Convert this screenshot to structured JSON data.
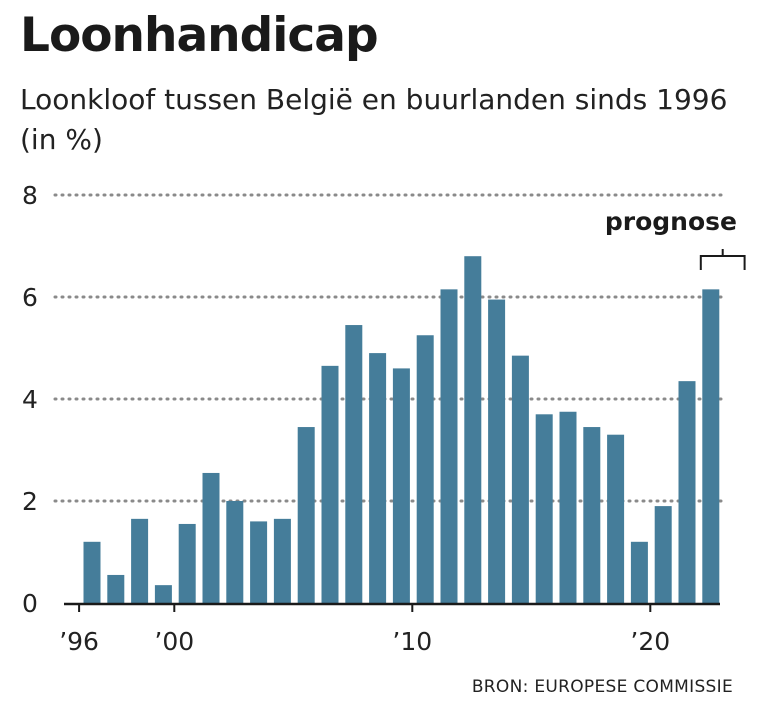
{
  "chart_data": {
    "type": "bar",
    "title": "Loonhandicap",
    "subtitle": "Loonkloof tussen België en buurlanden sinds 1996 (in %)",
    "x": [
      1996,
      1997,
      1998,
      1999,
      2000,
      2001,
      2002,
      2003,
      2004,
      2005,
      2006,
      2007,
      2008,
      2009,
      2010,
      2011,
      2012,
      2013,
      2014,
      2015,
      2016,
      2017,
      2018,
      2019,
      2020,
      2021,
      2022,
      2023
    ],
    "values": [
      1.2,
      0.55,
      1.65,
      0.35,
      1.55,
      2.55,
      2.0,
      1.6,
      1.65,
      3.45,
      4.65,
      5.45,
      4.9,
      4.6,
      5.25,
      6.15,
      6.8,
      5.95,
      4.85,
      3.7,
      3.75,
      3.45,
      3.3,
      1.2,
      1.9,
      4.35,
      6.15,
      0
    ],
    "forecast_from": 2022,
    "xtick_values": [
      1996,
      2000,
      2010,
      2020
    ],
    "xtick_labels": [
      "’96",
      "’00",
      "’10",
      "’20"
    ],
    "yticks": [
      0,
      2,
      4,
      6,
      8
    ],
    "ylim": [
      0,
      8
    ],
    "grid": true,
    "annotations": [
      {
        "text": "prognose",
        "x_from": 2022,
        "x_to": 2023
      }
    ],
    "source": "BRON: EUROPESE COMMISSIE",
    "bar_color": "#457d9a"
  }
}
